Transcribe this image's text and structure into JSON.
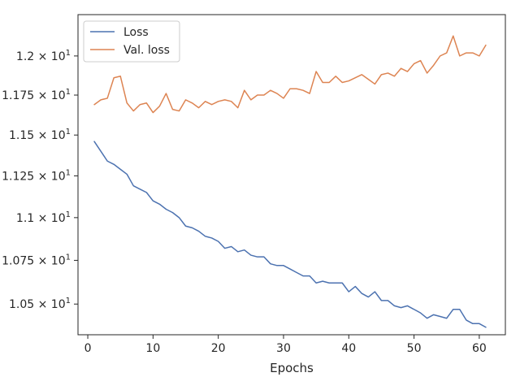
{
  "chart_data": {
    "type": "line",
    "title": "",
    "xlabel": "Epochs",
    "ylabel": "",
    "xlim": [
      -1.5,
      64
    ],
    "ylim": [
      10.328,
      12.27
    ],
    "x_ticks": [
      0,
      10,
      20,
      30,
      40,
      50,
      60
    ],
    "x_tick_labels": [
      "0",
      "10",
      "20",
      "30",
      "40",
      "50",
      "60"
    ],
    "y_ticks": [
      10.5,
      10.75,
      11.0,
      11.25,
      11.5,
      11.75,
      12.0
    ],
    "y_tick_labels": [
      "1.05 × 10¹",
      "1.075 × 10¹",
      "1.1 × 10¹",
      "1.125 × 10¹",
      "1.15 × 10¹",
      "1.175 × 10¹",
      "1.2 × 10¹"
    ],
    "y_scale": "log",
    "grid": false,
    "legend_position": "top-left",
    "x": [
      1,
      2,
      3,
      4,
      5,
      6,
      7,
      8,
      9,
      10,
      11,
      12,
      13,
      14,
      15,
      16,
      17,
      18,
      19,
      20,
      21,
      22,
      23,
      24,
      25,
      26,
      27,
      28,
      29,
      30,
      31,
      32,
      33,
      34,
      35,
      36,
      37,
      38,
      39,
      40,
      41,
      42,
      43,
      44,
      45,
      46,
      47,
      48,
      49,
      50,
      51,
      52,
      53,
      54,
      55,
      56,
      57,
      58,
      59,
      60,
      61
    ],
    "series": [
      {
        "name": "Loss",
        "color": "#4c72b0",
        "values": [
          11.46,
          11.4,
          11.34,
          11.32,
          11.29,
          11.26,
          11.19,
          11.17,
          11.15,
          11.1,
          11.08,
          11.05,
          11.03,
          11.0,
          10.95,
          10.94,
          10.92,
          10.89,
          10.88,
          10.86,
          10.82,
          10.83,
          10.8,
          10.81,
          10.78,
          10.77,
          10.77,
          10.73,
          10.72,
          10.72,
          10.7,
          10.68,
          10.66,
          10.66,
          10.62,
          10.63,
          10.62,
          10.62,
          10.62,
          10.57,
          10.6,
          10.56,
          10.54,
          10.57,
          10.52,
          10.52,
          10.49,
          10.48,
          10.49,
          10.47,
          10.45,
          10.42,
          10.44,
          10.43,
          10.42,
          10.47,
          10.47,
          10.41,
          10.39,
          10.39,
          10.37
        ]
      },
      {
        "name": "Val. loss",
        "color": "#dd8452",
        "values": [
          11.69,
          11.72,
          11.73,
          11.86,
          11.87,
          11.7,
          11.65,
          11.69,
          11.7,
          11.64,
          11.68,
          11.76,
          11.66,
          11.65,
          11.72,
          11.7,
          11.67,
          11.71,
          11.69,
          11.71,
          11.72,
          11.71,
          11.67,
          11.78,
          11.72,
          11.75,
          11.75,
          11.78,
          11.76,
          11.73,
          11.79,
          11.79,
          11.78,
          11.76,
          11.9,
          11.83,
          11.83,
          11.87,
          11.83,
          11.84,
          11.86,
          11.88,
          11.85,
          11.82,
          11.88,
          11.89,
          11.87,
          11.92,
          11.9,
          11.95,
          11.97,
          11.89,
          11.94,
          12.0,
          12.02,
          12.13,
          12.0,
          12.02,
          12.02,
          12.0,
          12.07
        ]
      }
    ]
  }
}
